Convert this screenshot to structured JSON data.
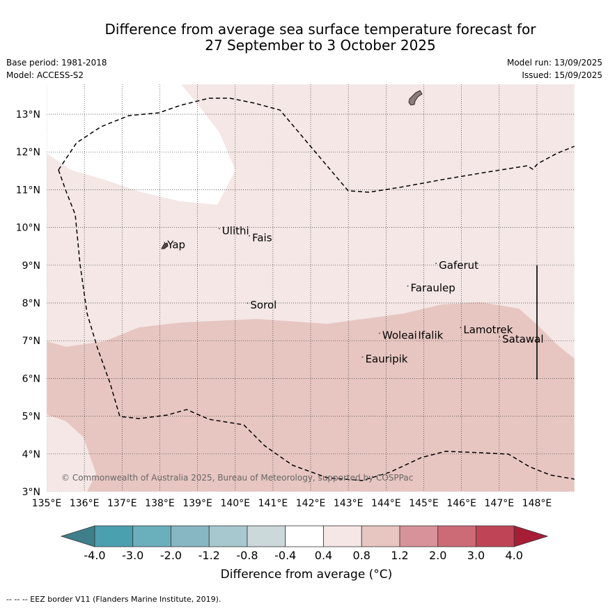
{
  "header": {
    "title_line1": "Difference from average sea surface temperature forecast for",
    "title_line2": "27 September to 3 October 2025",
    "base_period": "Base period: 1981-2018",
    "model": "Model: ACCESS-S2",
    "model_run": "Model run: 13/09/2025",
    "issued": "Issued: 15/09/2025"
  },
  "map": {
    "lon_range": [
      135,
      149
    ],
    "lat_range": [
      3,
      13.8
    ],
    "lon_ticks": [
      "135°E",
      "136°E",
      "137°E",
      "138°E",
      "139°E",
      "140°E",
      "141°E",
      "142°E",
      "143°E",
      "144°E",
      "145°E",
      "146°E",
      "147°E",
      "148°E"
    ],
    "lat_ticks": [
      "3°N",
      "4°N",
      "5°N",
      "6°N",
      "7°N",
      "8°N",
      "9°N",
      "10°N",
      "11°N",
      "12°N",
      "13°N"
    ],
    "gridlines": true,
    "places": [
      {
        "name": "Yap",
        "lon": 138.2,
        "lat": 9.45
      },
      {
        "name": "Ulithi",
        "lon": 139.65,
        "lat": 9.82
      },
      {
        "name": "Fais",
        "lon": 140.45,
        "lat": 9.63
      },
      {
        "name": "Sorol",
        "lon": 140.4,
        "lat": 7.85
      },
      {
        "name": "Gaferut",
        "lon": 145.4,
        "lat": 8.9
      },
      {
        "name": "Faraulep",
        "lon": 144.65,
        "lat": 8.3
      },
      {
        "name": "Woleai",
        "lon": 143.9,
        "lat": 7.05
      },
      {
        "name": "Ifalik",
        "lon": 144.85,
        "lat": 7.05
      },
      {
        "name": "Lamotrek",
        "lon": 146.05,
        "lat": 7.2
      },
      {
        "name": "Satawal",
        "lon": 147.08,
        "lat": 6.95
      },
      {
        "name": "Eauripik",
        "lon": 143.45,
        "lat": 6.42
      }
    ],
    "copyright": "© Commonwealth of Australia 2025, Bureau of Meteorology, supported by COSPPac",
    "colors": {
      "land": "#8c7b79",
      "anomaly_0_4_to_0_8": "#f4e7e5",
      "anomaly_0_8_to_1_2": "#e7c6c1",
      "anomaly_neutral": "#ffffff",
      "eez_line": "#000000"
    }
  },
  "colorbar": {
    "tick_labels": [
      "-4.0",
      "-3.0",
      "-2.0",
      "-1.2",
      "-0.8",
      "-0.4",
      "0.4",
      "0.8",
      "1.2",
      "2.0",
      "3.0",
      "4.0"
    ],
    "colors": [
      "#3f7f8a",
      "#4ba0b0",
      "#6aafbc",
      "#87b7c3",
      "#a8c8cf",
      "#cbd9db",
      "#ffffff",
      "#f4e7e5",
      "#e7c6c1",
      "#d8929a",
      "#cc6b76",
      "#bf4556",
      "#a81d36"
    ],
    "title": "Difference from average (°C)"
  },
  "footer": {
    "eez_note": "--  --  -- EEZ border V11 (Flanders Marine Institute, 2019)."
  }
}
